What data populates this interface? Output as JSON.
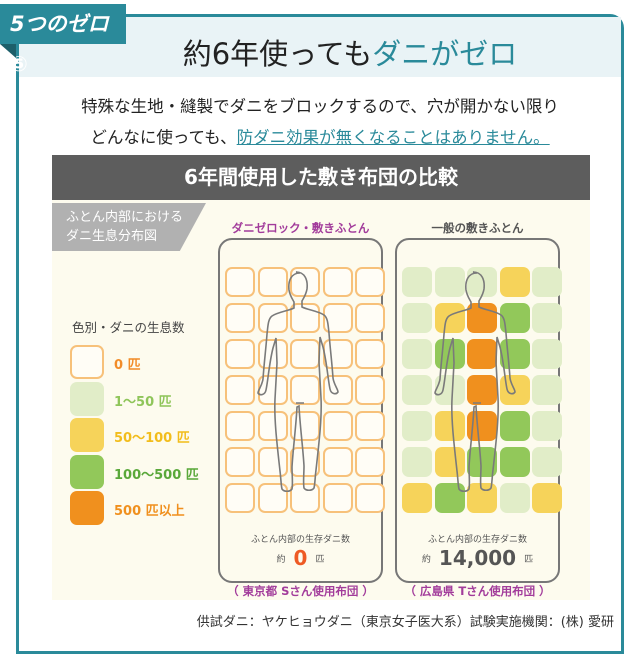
{
  "tab_label": "5つのゼロ ⑤",
  "title": {
    "prefix": "約6年使っても",
    "highlight": "ダニがゼロ"
  },
  "description": {
    "line1": "特殊な生地・縫製でダニをブロックするので、穴が開かない限り",
    "line2_prefix": "どんなに使っても、",
    "line2_highlight": "防ダニ効果が無くなることはありません。"
  },
  "colors": {
    "accent": "#2a8a9a",
    "level0": "#f7c17a",
    "level1": "#e1edc8",
    "level2": "#f6d35a",
    "level3": "#92c85a",
    "level4": "#f0901e"
  },
  "comparison": {
    "title": "6年間使用した敷き布団の比較",
    "label_line1": "ふとん内部における",
    "label_line2": "ダニ生息分布図",
    "legend_title": "色別・ダニの生息数",
    "legend": [
      {
        "label": "0 匹",
        "color": "#f28c28"
      },
      {
        "label": "1〜50 匹",
        "color": "#8fc55a"
      },
      {
        "label": "50〜100 匹",
        "color": "#f2bd1c"
      },
      {
        "label": "100〜500 匹",
        "color": "#5aa83a"
      },
      {
        "label": "500 匹以上",
        "color": "#f0901e"
      }
    ],
    "futons": [
      {
        "name": "ダニゼロック・敷きふとん",
        "name_color": "#a23c9b",
        "caption": "ふとん内部の生存ダニ数",
        "approx": "約",
        "count": "0",
        "unit": "匹",
        "count_color": "#ee5a24",
        "used_by": "（ 東京都 Sさん使用布団 ）",
        "grid": [
          [
            0,
            0,
            0,
            0,
            0
          ],
          [
            0,
            0,
            0,
            0,
            0
          ],
          [
            0,
            0,
            0,
            0,
            0
          ],
          [
            0,
            0,
            0,
            0,
            0
          ],
          [
            0,
            0,
            0,
            0,
            0
          ],
          [
            0,
            0,
            0,
            0,
            0
          ],
          [
            0,
            0,
            0,
            0,
            0
          ]
        ]
      },
      {
        "name": "一般の敷きふとん",
        "name_color": "#555555",
        "caption": "ふとん内部の生存ダニ数",
        "approx": "約",
        "count": "14,000",
        "unit": "匹",
        "count_color": "#555555",
        "used_by": "（ 広島県 Tさん使用布団 ）",
        "grid": [
          [
            1,
            1,
            1,
            2,
            1
          ],
          [
            1,
            2,
            4,
            3,
            1
          ],
          [
            1,
            3,
            4,
            3,
            1
          ],
          [
            1,
            1,
            4,
            2,
            1
          ],
          [
            1,
            2,
            4,
            3,
            1
          ],
          [
            1,
            2,
            3,
            3,
            1
          ],
          [
            2,
            3,
            2,
            1,
            2
          ]
        ]
      }
    ]
  },
  "footer": "供試ダニ：ヤケヒョウダニ（東京女子医大系）試験実施機関：(株) 愛研"
}
